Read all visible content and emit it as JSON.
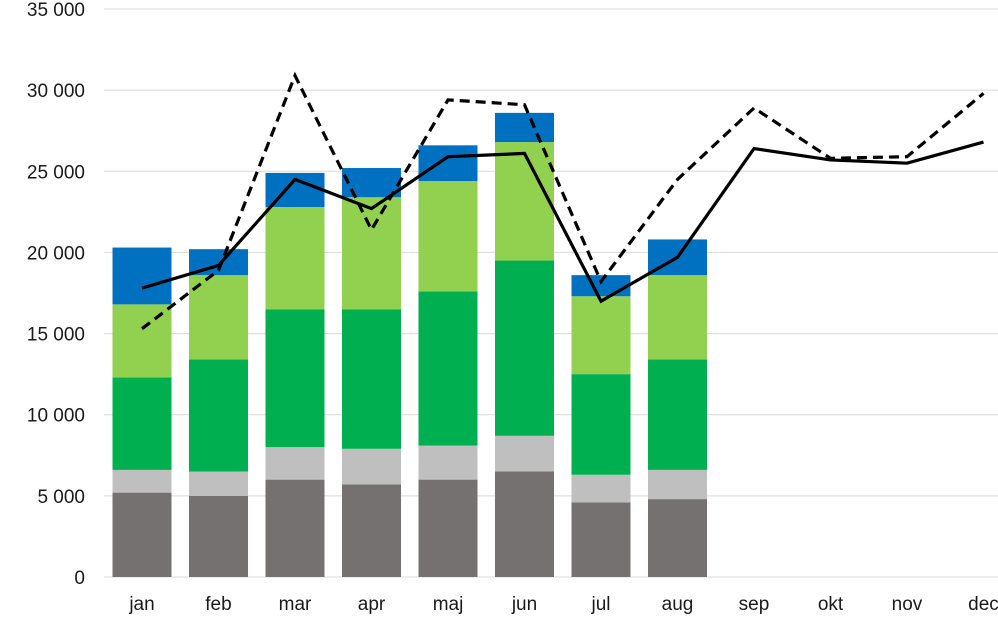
{
  "chart_data": {
    "type": "bar",
    "stacked": true,
    "categories": [
      "jan",
      "feb",
      "mar",
      "apr",
      "maj",
      "jun",
      "jul",
      "aug",
      "sep",
      "okt",
      "nov",
      "dec"
    ],
    "y_ticks": [
      "0",
      "5 000",
      "10 000",
      "15 000",
      "20 000",
      "25 000",
      "30 000",
      "35 000"
    ],
    "ylim": [
      0,
      35000
    ],
    "grid": true,
    "legend": "none",
    "series": [
      {
        "color": "#767171",
        "values": [
          5200,
          5000,
          6000,
          5700,
          6000,
          6500,
          4600,
          4800,
          null,
          null,
          null,
          null
        ]
      },
      {
        "color": "#bfbfbf",
        "values": [
          1400,
          1500,
          2000,
          2200,
          2100,
          2200,
          1700,
          1800,
          null,
          null,
          null,
          null
        ]
      },
      {
        "color": "#00b050",
        "values": [
          5700,
          6900,
          8500,
          8600,
          9500,
          10800,
          6200,
          6800,
          null,
          null,
          null,
          null
        ]
      },
      {
        "color": "#92d050",
        "values": [
          4500,
          5200,
          6300,
          6900,
          6800,
          7300,
          4800,
          5200,
          null,
          null,
          null,
          null
        ]
      },
      {
        "color": "#0070c0",
        "values": [
          3500,
          1600,
          2100,
          1800,
          2200,
          1800,
          1300,
          2200,
          null,
          null,
          null,
          null
        ]
      }
    ],
    "lines": [
      {
        "style": "solid",
        "color": "#000000",
        "values": [
          17800,
          19200,
          24500,
          22700,
          25900,
          26100,
          17000,
          19700,
          26400,
          25700,
          25500,
          26800
        ]
      },
      {
        "style": "dashed",
        "color": "#000000",
        "values": [
          15300,
          18900,
          30900,
          21400,
          29400,
          29100,
          18200,
          24500,
          28900,
          25800,
          25900,
          29800
        ]
      }
    ]
  }
}
